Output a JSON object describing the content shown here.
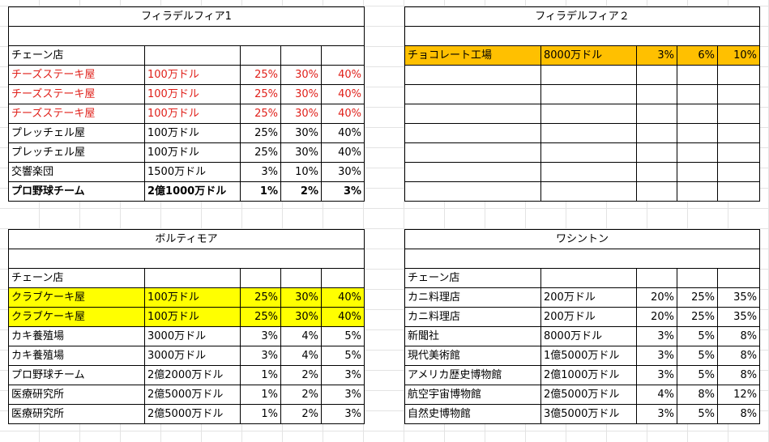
{
  "blocks": {
    "phila1": {
      "title": "フィラデルフィア1",
      "header": "チェーン店",
      "rows": [
        {
          "name": "チーズステーキ屋",
          "cost": "100万ドル",
          "p1": "25%",
          "p2": "30%",
          "p3": "40%",
          "style": "red"
        },
        {
          "name": "チーズステーキ屋",
          "cost": "100万ドル",
          "p1": "25%",
          "p2": "30%",
          "p3": "40%",
          "style": "red"
        },
        {
          "name": "チーズステーキ屋",
          "cost": "100万ドル",
          "p1": "25%",
          "p2": "30%",
          "p3": "40%",
          "style": "red"
        },
        {
          "name": "プレッチェル屋",
          "cost": "100万ドル",
          "p1": "25%",
          "p2": "30%",
          "p3": "40%",
          "style": ""
        },
        {
          "name": "プレッチェル屋",
          "cost": "100万ドル",
          "p1": "25%",
          "p2": "30%",
          "p3": "40%",
          "style": ""
        },
        {
          "name": "交響楽団",
          "cost": "1500万ドル",
          "p1": "3%",
          "p2": "10%",
          "p3": "30%",
          "style": ""
        },
        {
          "name": "プロ野球チーム",
          "cost": "2億1000万ドル",
          "p1": "1%",
          "p2": "2%",
          "p3": "3%",
          "style": "bold"
        }
      ]
    },
    "phila2": {
      "title": "フィラデルフィア２",
      "rows": [
        {
          "name": "チョコレート工場",
          "cost": "8000万ドル",
          "p1": "3%",
          "p2": "6%",
          "p3": "10%",
          "style": "orange"
        }
      ]
    },
    "baltimore": {
      "title": "ボルティモア",
      "header": "チェーン店",
      "rows": [
        {
          "name": "クラブケーキ屋",
          "cost": "100万ドル",
          "p1": "25%",
          "p2": "30%",
          "p3": "40%",
          "style": "yellow"
        },
        {
          "name": "クラブケーキ屋",
          "cost": "100万ドル",
          "p1": "25%",
          "p2": "30%",
          "p3": "40%",
          "style": "yellow"
        },
        {
          "name": "カキ養殖場",
          "cost": "3000万ドル",
          "p1": "3%",
          "p2": "4%",
          "p3": "5%",
          "style": ""
        },
        {
          "name": "カキ養殖場",
          "cost": "3000万ドル",
          "p1": "3%",
          "p2": "4%",
          "p3": "5%",
          "style": ""
        },
        {
          "name": "プロ野球チーム",
          "cost": "2億2000万ドル",
          "p1": "1%",
          "p2": "2%",
          "p3": "3%",
          "style": ""
        },
        {
          "name": "医療研究所",
          "cost": "2億5000万ドル",
          "p1": "1%",
          "p2": "2%",
          "p3": "3%",
          "style": ""
        },
        {
          "name": "医療研究所",
          "cost": "2億5000万ドル",
          "p1": "1%",
          "p2": "2%",
          "p3": "3%",
          "style": ""
        }
      ]
    },
    "washington": {
      "title": "ワシントン",
      "header": "チェーン店",
      "rows": [
        {
          "name": "カニ料理店",
          "cost": "200万ドル",
          "p1": "20%",
          "p2": "25%",
          "p3": "35%",
          "style": ""
        },
        {
          "name": "カニ料理店",
          "cost": "200万ドル",
          "p1": "20%",
          "p2": "25%",
          "p3": "35%",
          "style": ""
        },
        {
          "name": "新聞社",
          "cost": "8000万ドル",
          "p1": "3%",
          "p2": "5%",
          "p3": "8%",
          "style": ""
        },
        {
          "name": "現代美術館",
          "cost": "1億5000万ドル",
          "p1": "3%",
          "p2": "5%",
          "p3": "8%",
          "style": ""
        },
        {
          "name": "アメリカ歴史博物館",
          "cost": "2億1000万ドル",
          "p1": "3%",
          "p2": "5%",
          "p3": "8%",
          "style": ""
        },
        {
          "name": "航空宇宙博物館",
          "cost": "2億5000万ドル",
          "p1": "4%",
          "p2": "8%",
          "p3": "12%",
          "style": ""
        },
        {
          "name": "自然史博物館",
          "cost": "3億5000万ドル",
          "p1": "3%",
          "p2": "5%",
          "p3": "8%",
          "style": ""
        }
      ]
    }
  },
  "colors": {
    "red_text": "#e0201a",
    "yellow_fill": "#ffff00",
    "orange_fill": "#ffc000"
  }
}
